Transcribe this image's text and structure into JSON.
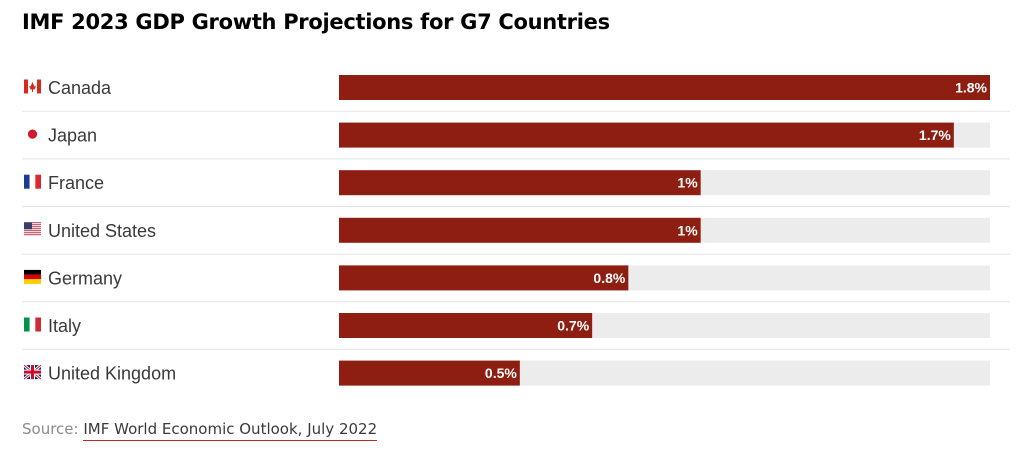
{
  "title": "IMF 2023 GDP Growth Projections for G7 Countries",
  "source": {
    "prefix": "Source:",
    "link_text": "IMF World Economic Outlook, July 2022"
  },
  "colors": {
    "bar": "#8f1e12",
    "track": "#ececec",
    "divider": "#e4e4e4",
    "source_underline": "#c0281e"
  },
  "chart_data": {
    "type": "bar",
    "orientation": "horizontal",
    "title": "IMF 2023 GDP Growth Projections for G7 Countries",
    "categories": [
      "Canada",
      "Japan",
      "France",
      "United States",
      "Germany",
      "Italy",
      "United Kingdom"
    ],
    "values": [
      1.8,
      1.7,
      1.0,
      1.0,
      0.8,
      0.7,
      0.5
    ],
    "value_labels": [
      "1.8%",
      "1.7%",
      "1%",
      "1%",
      "0.8%",
      "0.7%",
      "0.5%"
    ],
    "flag_icons": [
      "canada-flag-icon",
      "japan-flag-icon",
      "france-flag-icon",
      "usa-flag-icon",
      "germany-flag-icon",
      "italy-flag-icon",
      "uk-flag-icon"
    ],
    "xlim": [
      0,
      1.8
    ],
    "unit": "%",
    "grid": false,
    "legend": "none"
  }
}
